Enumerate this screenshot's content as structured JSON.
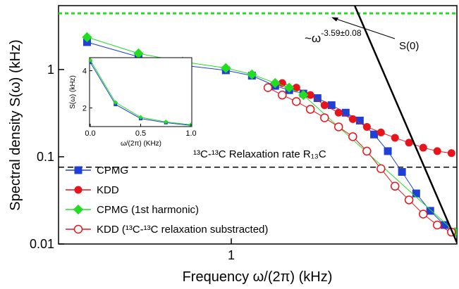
{
  "chart_data": {
    "type": "scatter",
    "x_label": "Frequency ω/(2π) (kHz)",
    "y_label": "Spectral density S(ω) (kHz)",
    "log_x": true,
    "log_y": true,
    "xlim": [
      0.05,
      50
    ],
    "ylim": [
      0.01,
      5.4
    ],
    "xticks": [
      1
    ],
    "yticks": [
      0.01,
      0.1,
      1
    ],
    "series": [
      {
        "name": "CPMG",
        "color": "#1f3fd6",
        "marker": "square",
        "x": [
          0.082,
          0.2,
          0.43,
          0.91,
          1.43,
          2.14,
          2.73,
          3.49,
          4.46,
          5.69,
          7.27,
          9.29,
          11.9,
          15.1,
          19.3,
          24.7,
          31.5,
          40.3,
          48.4
        ],
        "values": [
          2.06,
          1.4,
          1.12,
          0.98,
          0.85,
          0.65,
          0.58,
          0.53,
          0.47,
          0.39,
          0.32,
          0.26,
          0.18,
          0.116,
          0.067,
          0.038,
          0.024,
          0.0165,
          0.0137
        ]
      },
      {
        "name": "KDD",
        "color": "#e8141b",
        "marker": "circle",
        "x": [
          2.42,
          3.09,
          3.94,
          5.04,
          6.43,
          8.22,
          10.5,
          13.4,
          17.1,
          21.8,
          27.9,
          35.6,
          45.5
        ],
        "values": [
          0.7,
          0.62,
          0.51,
          0.39,
          0.32,
          0.27,
          0.22,
          0.19,
          0.165,
          0.145,
          0.127,
          0.116,
          0.11
        ]
      },
      {
        "name": "CPMG (1st harmonic)",
        "color": "#22dd22",
        "marker": "diamond",
        "x": [
          0.082,
          0.2,
          0.43,
          0.91,
          1.43,
          2.14,
          2.73,
          3.49,
          48.4
        ],
        "values": [
          2.35,
          1.53,
          1.23,
          1.04,
          0.88,
          0.7,
          0.62,
          0.51,
          0.0137
        ]
      },
      {
        "name": "KDD (¹³C-¹³C relaxation substracted)",
        "color": "#e8141b",
        "marker": "open-circle",
        "x": [
          1.89,
          2.42,
          3.09,
          3.94,
          5.04,
          6.43,
          8.22,
          10.5,
          13.4,
          17.1,
          21.8,
          27.9,
          35.6,
          45.5
        ],
        "values": [
          0.62,
          0.51,
          0.43,
          0.35,
          0.28,
          0.22,
          0.17,
          0.116,
          0.073,
          0.046,
          0.032,
          0.022,
          0.0165,
          0.0137
        ]
      }
    ],
    "fit_line": {
      "x": [
        8.5,
        50
      ],
      "values": [
        5.4,
        0.0104
      ],
      "label_base": "~ω",
      "label_exponent": "-3.59±0.08"
    },
    "s0_line": {
      "value": 4.4,
      "color": "#22dd22",
      "label": "S(0)"
    },
    "r13c_line": {
      "value": 0.076,
      "label": "¹³C-¹³C Relaxation rate R₁₃C"
    },
    "legend": "lower left",
    "inset": {
      "type": "line",
      "x_label": "ω/(2π) (KHz)",
      "y_label": "S(ω) (kHz)",
      "xlim": [
        0,
        1
      ],
      "ylim": [
        1,
        4.7
      ],
      "xticks": [
        {
          "value": 0,
          "label": "0.0"
        },
        {
          "value": 0.5,
          "label": "0.5"
        },
        {
          "value": 1,
          "label": "1.0"
        }
      ],
      "yticks": [
        2,
        4
      ],
      "series": [
        {
          "color": "#1f3fd6",
          "marker": "square",
          "x": [
            0,
            0.25,
            0.5,
            0.75,
            1
          ],
          "values": [
            4.45,
            2.19,
            1.43,
            1.21,
            1.06
          ]
        },
        {
          "color": "#22dd22",
          "marker": "diamond",
          "x": [
            0,
            0.25,
            0.5,
            0.75,
            1
          ],
          "values": [
            4.57,
            2.3,
            1.5,
            1.25,
            1.1
          ]
        }
      ]
    }
  }
}
